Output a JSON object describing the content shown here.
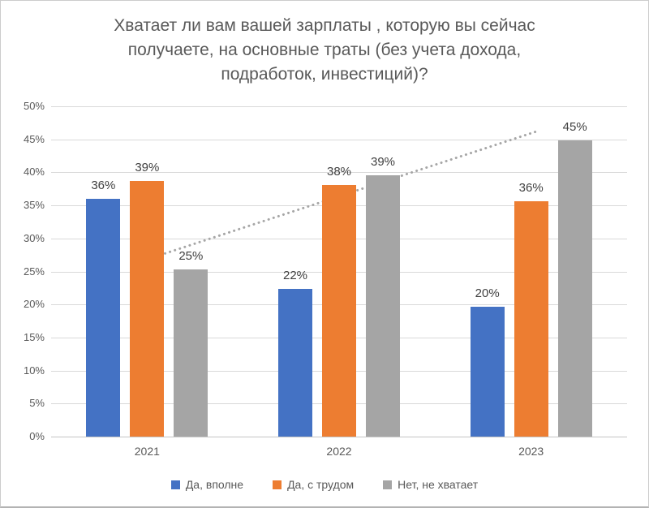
{
  "page": {
    "background": "#ffffff",
    "border_color": "#cccccc"
  },
  "chart_data": {
    "type": "bar",
    "title": "Хватает ли вам вашей зарплаты , которую вы сейчас получаете, на основные траты (без учета дохода, подработок, инвестиций)?",
    "title_lines": [
      "Хватает ли вам вашей зарплаты , которую вы сейчас",
      "получаете, на основные траты (без учета дохода,",
      "подработок, инвестиций)?"
    ],
    "categories": [
      "2021",
      "2022",
      "2023"
    ],
    "series": [
      {
        "name": "Да, вполне",
        "color": "#4472C4",
        "values": [
          36,
          22,
          20
        ],
        "bar_heights_pct": [
          36.0,
          22.4,
          19.6
        ]
      },
      {
        "name": "Да, с трудом",
        "color": "#ED7D31",
        "values": [
          39,
          38,
          36
        ],
        "bar_heights_pct": [
          38.7,
          38.1,
          35.6
        ]
      },
      {
        "name": "Нет, не хватает",
        "color": "#A5A5A5",
        "values": [
          25,
          39,
          45
        ],
        "bar_heights_pct": [
          25.3,
          39.5,
          44.8
        ]
      }
    ],
    "data_label_suffix": "%",
    "y_axis": {
      "min": 0,
      "max": 50,
      "step": 5,
      "tick_suffix": "%",
      "tick_labels": [
        "0%",
        "5%",
        "10%",
        "15%",
        "20%",
        "25%",
        "30%",
        "35%",
        "40%",
        "45%",
        "50%"
      ],
      "grid": true,
      "gridline_color": "#d9d9d9"
    },
    "xlabel": "",
    "ylabel": "",
    "trendline": {
      "applies_to_series": "Нет, не хватает",
      "style": "dotted",
      "color": "#A6A6A6",
      "x_start_frac": 0.155,
      "y_start_pct": 26.5,
      "x_end_frac": 0.843,
      "y_end_pct": 46.2
    },
    "legend_position": "bottom",
    "text_colors": {
      "title": "#595959",
      "axis": "#595959",
      "data_label": "#404040"
    }
  }
}
